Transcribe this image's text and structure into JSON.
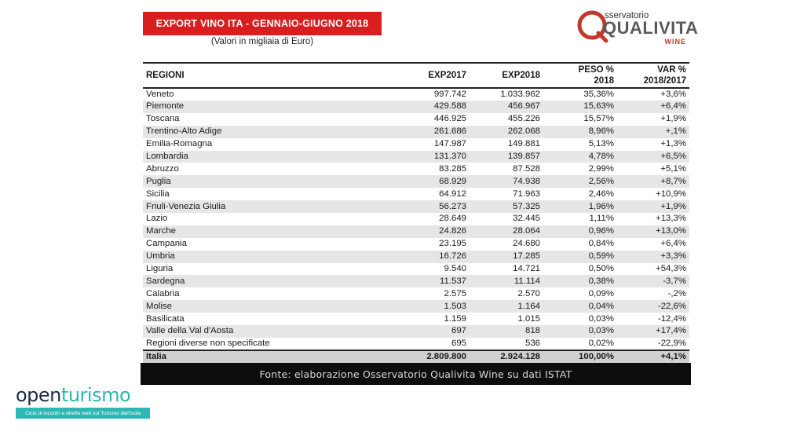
{
  "header": {
    "title": "EXPORT VINO ITA - GENNAIO-GIUGNO 2018",
    "subtitle": "(Valori in migliaia di Euro)"
  },
  "logo_qualivita": {
    "top": "sservatorio",
    "brand": "QUALIVITA",
    "wine": "WINE",
    "accent_color": "#c0392b"
  },
  "table": {
    "columns": {
      "region": "REGIONI",
      "exp2017": "EXP2017",
      "exp2018": "EXP2018",
      "peso_1": "PESO %",
      "peso_2": "2018",
      "var_1": "VAR %",
      "var_2": "2018/2017"
    },
    "rows": [
      {
        "region": "Veneto",
        "exp2017": "997.742",
        "exp2018": "1.033.962",
        "peso": "35,36%",
        "var": "+3,6%"
      },
      {
        "region": "Piemonte",
        "exp2017": "429.588",
        "exp2018": "456.967",
        "peso": "15,63%",
        "var": "+6,4%"
      },
      {
        "region": "Toscana",
        "exp2017": "446.925",
        "exp2018": "455.226",
        "peso": "15,57%",
        "var": "+1,9%"
      },
      {
        "region": "Trentino-Alto Adige",
        "exp2017": "261.686",
        "exp2018": "262.068",
        "peso": "8,96%",
        "var": "+,1%"
      },
      {
        "region": "Emilia-Romagna",
        "exp2017": "147.987",
        "exp2018": "149.881",
        "peso": "5,13%",
        "var": "+1,3%"
      },
      {
        "region": "Lombardia",
        "exp2017": "131.370",
        "exp2018": "139.857",
        "peso": "4,78%",
        "var": "+6,5%"
      },
      {
        "region": "Abruzzo",
        "exp2017": "83.285",
        "exp2018": "87.528",
        "peso": "2,99%",
        "var": "+5,1%"
      },
      {
        "region": "Puglia",
        "exp2017": "68.929",
        "exp2018": "74.938",
        "peso": "2,56%",
        "var": "+8,7%"
      },
      {
        "region": "Sicilia",
        "exp2017": "64.912",
        "exp2018": "71.963",
        "peso": "2,46%",
        "var": "+10,9%"
      },
      {
        "region": "Friuli-Venezia Giulia",
        "exp2017": "56.273",
        "exp2018": "57.325",
        "peso": "1,96%",
        "var": "+1,9%"
      },
      {
        "region": "Lazio",
        "exp2017": "28.649",
        "exp2018": "32.445",
        "peso": "1,11%",
        "var": "+13,3%"
      },
      {
        "region": "Marche",
        "exp2017": "24.826",
        "exp2018": "28.064",
        "peso": "0,96%",
        "var": "+13,0%"
      },
      {
        "region": "Campania",
        "exp2017": "23.195",
        "exp2018": "24.680",
        "peso": "0,84%",
        "var": "+6,4%"
      },
      {
        "region": "Umbria",
        "exp2017": "16.726",
        "exp2018": "17.285",
        "peso": "0,59%",
        "var": "+3,3%"
      },
      {
        "region": "Liguria",
        "exp2017": "9.540",
        "exp2018": "14.721",
        "peso": "0,50%",
        "var": "+54,3%"
      },
      {
        "region": "Sardegna",
        "exp2017": "11.537",
        "exp2018": "11.114",
        "peso": "0,38%",
        "var": "-3,7%"
      },
      {
        "region": "Calabria",
        "exp2017": "2.575",
        "exp2018": "2.570",
        "peso": "0,09%",
        "var": "-,2%"
      },
      {
        "region": "Molise",
        "exp2017": "1.503",
        "exp2018": "1.164",
        "peso": "0,04%",
        "var": "-22,6%"
      },
      {
        "region": "Basilicata",
        "exp2017": "1.159",
        "exp2018": "1.015",
        "peso": "0,03%",
        "var": "-12,4%"
      },
      {
        "region": "Valle della Val d'Aosta",
        "exp2017": "697",
        "exp2018": "818",
        "peso": "0,03%",
        "var": "+17,4%"
      },
      {
        "region": "Regioni diverse non specificate",
        "exp2017": "695",
        "exp2018": "536",
        "peso": "0,02%",
        "var": "-22,9%"
      }
    ],
    "total": {
      "region": "Italia",
      "exp2017": "2.809.800",
      "exp2018": "2.924.128",
      "peso": "100,00%",
      "var": "+4,1%"
    }
  },
  "source": "Fonte: elaborazione Osservatorio Qualivita Wine su dati ISTAT",
  "logo_openturismo": {
    "part1": "open",
    "part2": "turismo",
    "tagline": "Ciclo di incontri e dirette web sul Turismo dell'Isola",
    "color_dark": "#1f2b44",
    "color_teal": "#2bb7b0"
  }
}
